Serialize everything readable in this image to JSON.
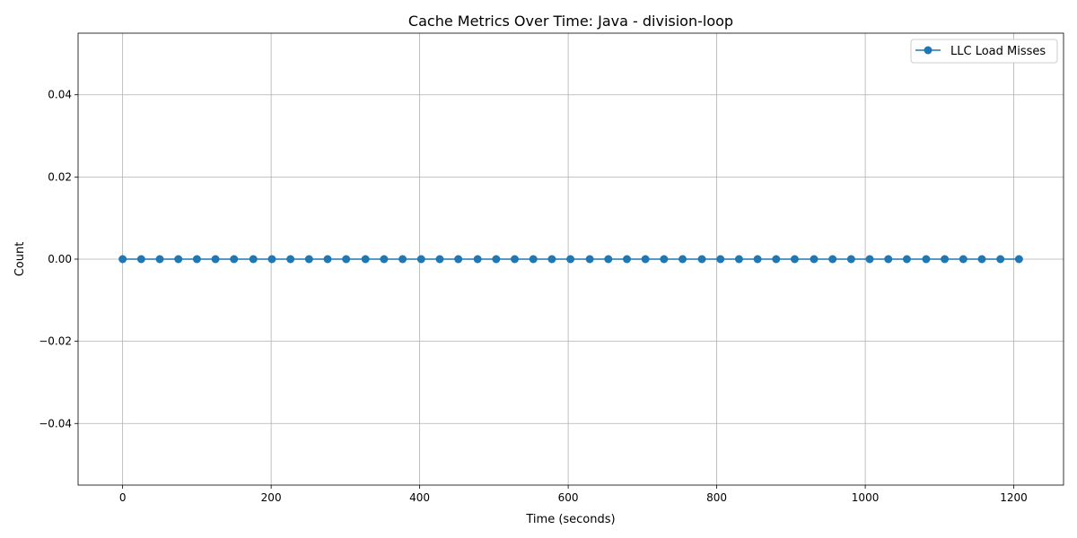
{
  "chart_data": {
    "type": "line",
    "title": "Cache Metrics Over Time: Java - division-loop",
    "xlabel": "Time (seconds)",
    "ylabel": "Count",
    "xlim": [
      -60,
      1267
    ],
    "ylim": [
      -0.055,
      0.055
    ],
    "xticks": [
      0,
      200,
      400,
      600,
      800,
      1000,
      1200
    ],
    "xtick_labels": [
      "0",
      "200",
      "400",
      "600",
      "800",
      "1000",
      "1200"
    ],
    "yticks": [
      -0.04,
      -0.02,
      0.0,
      0.02,
      0.04
    ],
    "ytick_labels": [
      "−0.04",
      "−0.02",
      "0.00",
      "0.02",
      "0.04"
    ],
    "grid": true,
    "legend_position": "top-right",
    "series": [
      {
        "name": "LLC Load Misses",
        "color": "#1f77b4",
        "marker": "circle",
        "x": [
          0,
          25,
          50,
          75,
          100,
          125,
          150,
          176,
          201,
          226,
          251,
          276,
          301,
          327,
          352,
          377,
          402,
          427,
          452,
          478,
          503,
          528,
          553,
          578,
          603,
          629,
          654,
          679,
          704,
          729,
          754,
          780,
          805,
          830,
          855,
          880,
          905,
          931,
          956,
          981,
          1006,
          1031,
          1056,
          1082,
          1107,
          1132,
          1157,
          1182,
          1207
        ],
        "y": [
          0,
          0,
          0,
          0,
          0,
          0,
          0,
          0,
          0,
          0,
          0,
          0,
          0,
          0,
          0,
          0,
          0,
          0,
          0,
          0,
          0,
          0,
          0,
          0,
          0,
          0,
          0,
          0,
          0,
          0,
          0,
          0,
          0,
          0,
          0,
          0,
          0,
          0,
          0,
          0,
          0,
          0,
          0,
          0,
          0,
          0,
          0,
          0,
          0
        ]
      }
    ]
  }
}
